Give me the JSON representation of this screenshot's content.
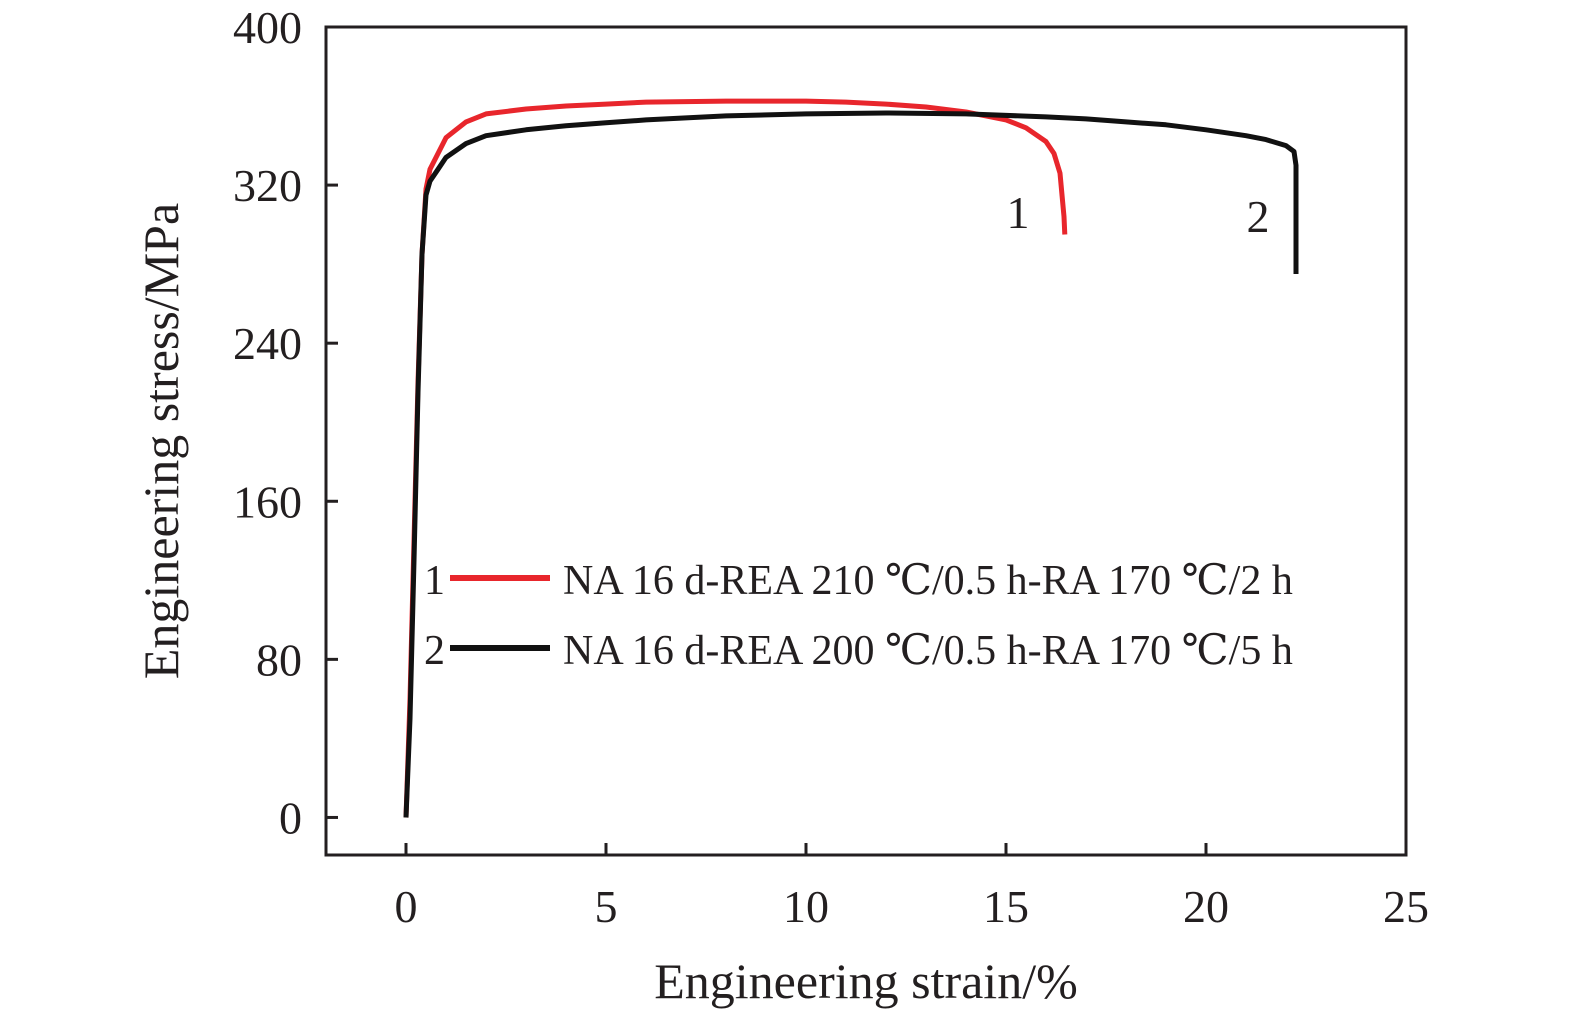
{
  "chart_data": {
    "type": "line",
    "xlabel": "Engineering strain/%",
    "ylabel": "Engineering stress/MPa",
    "xlim": [
      -2,
      25
    ],
    "ylim": [
      -19,
      400
    ],
    "xticks": [
      0,
      5,
      10,
      15,
      20,
      25
    ],
    "yticks": [
      0,
      80,
      160,
      240,
      320,
      400
    ],
    "grid": false,
    "legend_position": "center",
    "series": [
      {
        "id": "1",
        "name": "NA 16 d-REA 210 ℃/0.5 h-RA 170 ℃/2 h",
        "color": "#e8262c",
        "x": [
          0.0,
          0.1,
          0.2,
          0.3,
          0.4,
          0.5,
          0.6,
          0.8,
          1.0,
          1.5,
          2,
          3,
          4,
          5,
          6,
          8,
          10,
          11,
          12,
          13,
          14,
          14.5,
          15,
          15.5,
          16,
          16.2,
          16.35,
          16.4,
          16.45,
          16.47
        ],
        "y": [
          0,
          60,
          140,
          220,
          285,
          318,
          328,
          336,
          344,
          352,
          356,
          358.5,
          360,
          361,
          362,
          362.5,
          362.5,
          362,
          361,
          359.5,
          357,
          355,
          353,
          349,
          342,
          336,
          326,
          315,
          304,
          295
        ]
      },
      {
        "id": "2",
        "name": "NA 16 d-REA 200 ℃/0.5 h-RA 170 ℃/5 h",
        "color": "#111111",
        "x": [
          0.0,
          0.1,
          0.2,
          0.3,
          0.4,
          0.5,
          0.6,
          0.8,
          1.0,
          1.5,
          2,
          3,
          4,
          5,
          6,
          8,
          10,
          12,
          14,
          16,
          17,
          18,
          19,
          20,
          21,
          21.5,
          22,
          22.2,
          22.25,
          22.25,
          22.25
        ],
        "y": [
          0,
          50,
          130,
          215,
          285,
          315,
          322,
          328,
          334,
          341,
          345,
          348,
          350,
          351.5,
          353,
          355,
          356,
          356.5,
          356,
          354.5,
          353.5,
          352,
          350.5,
          348,
          345,
          343,
          340,
          337,
          330,
          300,
          275
        ]
      }
    ],
    "annotations": [
      "1",
      "2"
    ]
  }
}
